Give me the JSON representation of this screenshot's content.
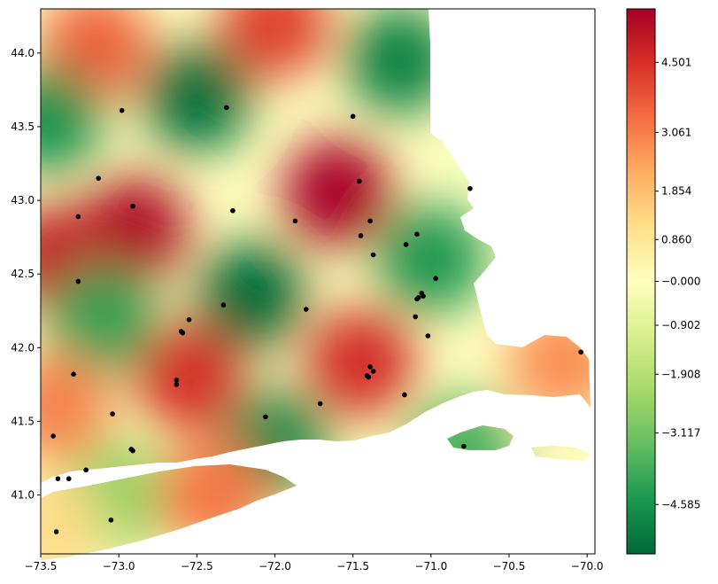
{
  "chart_data": {
    "type": "heatmap",
    "title": "",
    "xlabel": "",
    "ylabel": "",
    "xlim": [
      -73.5,
      -69.95
    ],
    "ylim": [
      40.6,
      44.3
    ],
    "x_ticks": [
      -73.5,
      -73.0,
      -72.5,
      -72.0,
      -71.5,
      -71.0,
      -70.5,
      -70.0
    ],
    "x_tick_labels": [
      "−73.5",
      "−73.0",
      "−72.5",
      "−72.0",
      "−71.5",
      "−71.0",
      "−70.5",
      "−70.0"
    ],
    "y_ticks": [
      41.0,
      41.5,
      42.0,
      42.5,
      43.0,
      43.5,
      44.0
    ],
    "y_tick_labels": [
      "41.0",
      "41.5",
      "42.0",
      "42.5",
      "43.0",
      "43.5",
      "44.0"
    ],
    "colormap": "RdYlGn_r",
    "colors": {
      "low": "#006837",
      "mid": "#ffffbf",
      "high": "#a50026",
      "points": "#000000"
    },
    "colorbar": {
      "vmin": -5.6,
      "vmax": 5.6,
      "ticks": [
        4.501,
        3.061,
        1.854,
        0.86,
        0.0,
        -0.902,
        -1.908,
        -3.117,
        -4.585
      ],
      "tick_labels": [
        "4.501",
        "3.061",
        "1.854",
        "0.860",
        "−0.000",
        "−0.902",
        "−1.908",
        "−3.117",
        "−4.585"
      ]
    },
    "hotspots": [
      {
        "x": -71.6,
        "y": 43.05,
        "value": 5.5
      },
      {
        "x": -72.9,
        "y": 42.8,
        "value": 5.4
      },
      {
        "x": -73.4,
        "y": 42.6,
        "value": 5.0
      },
      {
        "x": -71.45,
        "y": 41.9,
        "value": 4.6
      },
      {
        "x": -72.55,
        "y": 41.8,
        "value": 4.5
      },
      {
        "x": -73.15,
        "y": 44.05,
        "value": 3.6
      },
      {
        "x": -72.0,
        "y": 44.2,
        "value": 4.2
      },
      {
        "x": -72.5,
        "y": 43.7,
        "value": -5.4
      },
      {
        "x": -71.2,
        "y": 43.95,
        "value": -5.0
      },
      {
        "x": -72.15,
        "y": 42.35,
        "value": -5.5
      },
      {
        "x": -73.45,
        "y": 43.55,
        "value": -4.6
      },
      {
        "x": -71.0,
        "y": 42.6,
        "value": -4.5
      },
      {
        "x": -73.1,
        "y": 42.2,
        "value": -4.2
      },
      {
        "x": -72.0,
        "y": 41.35,
        "value": -4.8
      },
      {
        "x": -70.8,
        "y": 41.3,
        "value": -3.8
      },
      {
        "x": -73.0,
        "y": 41.0,
        "value": -2.5
      },
      {
        "x": -72.4,
        "y": 41.0,
        "value": 3.2
      },
      {
        "x": -73.4,
        "y": 41.6,
        "value": 3.0
      },
      {
        "x": -70.15,
        "y": 41.9,
        "value": 2.8
      },
      {
        "x": -73.45,
        "y": 40.75,
        "value": 1.2
      }
    ],
    "points": [
      {
        "x": -72.98,
        "y": 43.61
      },
      {
        "x": -72.31,
        "y": 43.63
      },
      {
        "x": -71.5,
        "y": 43.57
      },
      {
        "x": -73.13,
        "y": 43.15
      },
      {
        "x": -71.46,
        "y": 43.13
      },
      {
        "x": -70.75,
        "y": 43.08
      },
      {
        "x": -72.91,
        "y": 42.96
      },
      {
        "x": -72.27,
        "y": 42.93
      },
      {
        "x": -73.26,
        "y": 42.89
      },
      {
        "x": -71.87,
        "y": 42.86
      },
      {
        "x": -71.39,
        "y": 42.86
      },
      {
        "x": -71.45,
        "y": 42.76
      },
      {
        "x": -71.09,
        "y": 42.77
      },
      {
        "x": -71.16,
        "y": 42.7
      },
      {
        "x": -71.37,
        "y": 42.63
      },
      {
        "x": -73.26,
        "y": 42.45
      },
      {
        "x": -70.97,
        "y": 42.47
      },
      {
        "x": -71.06,
        "y": 42.37
      },
      {
        "x": -71.05,
        "y": 42.35
      },
      {
        "x": -71.08,
        "y": 42.34
      },
      {
        "x": -71.09,
        "y": 42.33
      },
      {
        "x": -72.33,
        "y": 42.29
      },
      {
        "x": -71.8,
        "y": 42.26
      },
      {
        "x": -72.55,
        "y": 42.19
      },
      {
        "x": -71.1,
        "y": 42.21
      },
      {
        "x": -72.6,
        "y": 42.11
      },
      {
        "x": -72.59,
        "y": 42.1
      },
      {
        "x": -71.02,
        "y": 42.08
      },
      {
        "x": -70.04,
        "y": 41.97
      },
      {
        "x": -71.39,
        "y": 41.87
      },
      {
        "x": -71.37,
        "y": 41.84
      },
      {
        "x": -73.29,
        "y": 41.82
      },
      {
        "x": -71.41,
        "y": 41.81
      },
      {
        "x": -71.4,
        "y": 41.8
      },
      {
        "x": -72.63,
        "y": 41.78
      },
      {
        "x": -72.63,
        "y": 41.75
      },
      {
        "x": -71.17,
        "y": 41.68
      },
      {
        "x": -71.71,
        "y": 41.62
      },
      {
        "x": -73.04,
        "y": 41.55
      },
      {
        "x": -72.06,
        "y": 41.53
      },
      {
        "x": -73.42,
        "y": 41.4
      },
      {
        "x": -70.79,
        "y": 41.33
      },
      {
        "x": -72.92,
        "y": 41.31
      },
      {
        "x": -72.91,
        "y": 41.3
      },
      {
        "x": -73.21,
        "y": 41.17
      },
      {
        "x": -73.39,
        "y": 41.11
      },
      {
        "x": -73.32,
        "y": 41.11
      },
      {
        "x": -73.05,
        "y": 40.83
      },
      {
        "x": -73.4,
        "y": 40.75
      }
    ]
  }
}
